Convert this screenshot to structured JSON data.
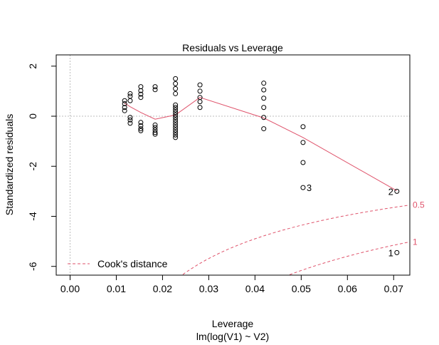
{
  "chart_data": {
    "type": "scatter",
    "title": "Residuals vs Leverage",
    "xlabel": "Leverage",
    "subtitle": "lm(log(V1) ~ V2)",
    "ylabel": "Standardized residuals",
    "xlim": [
      -0.003,
      0.0735
    ],
    "ylim": [
      -6.35,
      2.45
    ],
    "xticks": [
      0.0,
      0.01,
      0.02,
      0.03,
      0.04,
      0.05,
      0.06,
      0.07
    ],
    "xtick_labels": [
      "0.00",
      "0.01",
      "0.02",
      "0.03",
      "0.04",
      "0.05",
      "0.06",
      "0.07"
    ],
    "yticks": [
      2,
      0,
      -2,
      -4,
      -6
    ],
    "ytick_labels": [
      "2",
      "0",
      "-2",
      "-4",
      "-6"
    ],
    "grid": false,
    "colors": {
      "smooth": "#DF536B",
      "cook": "#DF536B",
      "points": "#000000",
      "reference": "#BEBEBE"
    },
    "points": [
      {
        "x": 0.0118,
        "y": 0.62
      },
      {
        "x": 0.0118,
        "y": 0.5
      },
      {
        "x": 0.0118,
        "y": 0.35
      },
      {
        "x": 0.0118,
        "y": 0.22
      },
      {
        "x": 0.013,
        "y": 0.9
      },
      {
        "x": 0.013,
        "y": 0.8
      },
      {
        "x": 0.013,
        "y": 0.62
      },
      {
        "x": 0.013,
        "y": -0.05
      },
      {
        "x": 0.013,
        "y": -0.15
      },
      {
        "x": 0.013,
        "y": -0.28
      },
      {
        "x": 0.0153,
        "y": 1.18
      },
      {
        "x": 0.0153,
        "y": 1.02
      },
      {
        "x": 0.0153,
        "y": 0.88
      },
      {
        "x": 0.0153,
        "y": 0.75
      },
      {
        "x": 0.0153,
        "y": -0.25
      },
      {
        "x": 0.0153,
        "y": -0.38
      },
      {
        "x": 0.0153,
        "y": -0.5
      },
      {
        "x": 0.0153,
        "y": -0.58
      },
      {
        "x": 0.0184,
        "y": 1.18
      },
      {
        "x": 0.0184,
        "y": 1.06
      },
      {
        "x": 0.0184,
        "y": -0.35
      },
      {
        "x": 0.0184,
        "y": -0.45
      },
      {
        "x": 0.0184,
        "y": -0.55
      },
      {
        "x": 0.0184,
        "y": -0.65
      },
      {
        "x": 0.0184,
        "y": -0.72
      },
      {
        "x": 0.0228,
        "y": 1.5
      },
      {
        "x": 0.0228,
        "y": 1.3
      },
      {
        "x": 0.0228,
        "y": 1.1
      },
      {
        "x": 0.0228,
        "y": 0.9
      },
      {
        "x": 0.0228,
        "y": 0.45
      },
      {
        "x": 0.0228,
        "y": 0.35
      },
      {
        "x": 0.0228,
        "y": 0.25
      },
      {
        "x": 0.0228,
        "y": 0.15
      },
      {
        "x": 0.0228,
        "y": 0.05
      },
      {
        "x": 0.0228,
        "y": -0.05
      },
      {
        "x": 0.0228,
        "y": -0.15
      },
      {
        "x": 0.0228,
        "y": -0.25
      },
      {
        "x": 0.0228,
        "y": -0.35
      },
      {
        "x": 0.0228,
        "y": -0.45
      },
      {
        "x": 0.0228,
        "y": -0.55
      },
      {
        "x": 0.0228,
        "y": -0.65
      },
      {
        "x": 0.0228,
        "y": -0.75
      },
      {
        "x": 0.0228,
        "y": -0.85
      },
      {
        "x": 0.0281,
        "y": 1.25
      },
      {
        "x": 0.0281,
        "y": 1.0
      },
      {
        "x": 0.0281,
        "y": 0.75
      },
      {
        "x": 0.0281,
        "y": 0.58
      },
      {
        "x": 0.0281,
        "y": 0.35
      },
      {
        "x": 0.0419,
        "y": 1.32
      },
      {
        "x": 0.0419,
        "y": 1.05
      },
      {
        "x": 0.0419,
        "y": 0.72
      },
      {
        "x": 0.0419,
        "y": 0.35
      },
      {
        "x": 0.0419,
        "y": -0.05
      },
      {
        "x": 0.0419,
        "y": -0.5
      },
      {
        "x": 0.0504,
        "y": -0.42
      },
      {
        "x": 0.0504,
        "y": -1.05
      },
      {
        "x": 0.0504,
        "y": -1.85
      },
      {
        "x": 0.0504,
        "y": -2.85
      },
      {
        "x": 0.0707,
        "y": -3.0
      },
      {
        "x": 0.0707,
        "y": -5.45
      }
    ],
    "point_labels": [
      {
        "x": 0.0504,
        "y": -2.85,
        "text": "3",
        "side": "right"
      },
      {
        "x": 0.0707,
        "y": -3.0,
        "text": "2",
        "side": "left"
      },
      {
        "x": 0.0707,
        "y": -5.45,
        "text": "1",
        "side": "left"
      }
    ],
    "smooth_line": [
      {
        "x": 0.0118,
        "y": 0.52
      },
      {
        "x": 0.013,
        "y": 0.38
      },
      {
        "x": 0.0153,
        "y": 0.15
      },
      {
        "x": 0.0184,
        "y": -0.12
      },
      {
        "x": 0.0228,
        "y": 0.05
      },
      {
        "x": 0.0281,
        "y": 0.75
      },
      {
        "x": 0.0419,
        "y": -0.07
      },
      {
        "x": 0.0504,
        "y": -0.85
      },
      {
        "x": 0.0707,
        "y": -2.98
      }
    ],
    "cooks_levels": [
      0.5,
      1
    ],
    "cooks_labels": [
      "0.5",
      "1"
    ],
    "legend": {
      "label": "Cook's distance",
      "position": "bottom-left"
    }
  }
}
